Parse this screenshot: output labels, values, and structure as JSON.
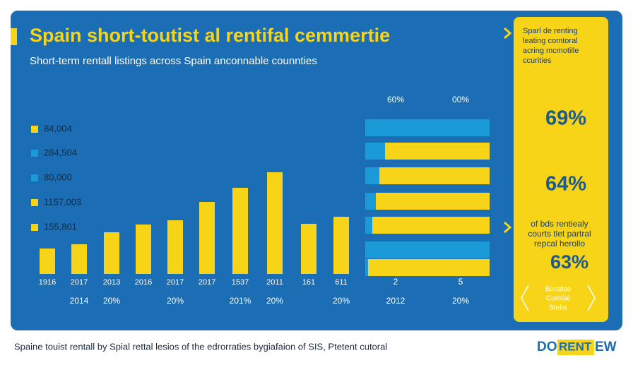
{
  "header": {
    "title": "Spain short-toutist al rentifal cemmertie",
    "subtitle": "Short-term rentall listings across Spain anconnable counnties"
  },
  "legend": [
    {
      "label": "84,004",
      "color": "#f7d417"
    },
    {
      "label": "284,504",
      "color": "#1a9ad6"
    },
    {
      "label": "80,000",
      "color": "#1a9ad6"
    },
    {
      "label": "1157,003",
      "color": "#f7d417"
    },
    {
      "label": "155,801",
      "color": "#f7d417"
    }
  ],
  "chart_data": [
    {
      "type": "bar",
      "categories": [
        "1916",
        "2017",
        "2013",
        "2016",
        "2017",
        "2017",
        "1537",
        "2011",
        "161",
        "611"
      ],
      "categories_2": [
        null,
        "2014",
        "20%",
        null,
        "20%",
        null,
        "201%",
        "20%",
        null,
        "20%"
      ],
      "values": [
        36,
        42,
        59,
        70,
        76,
        102,
        122,
        144,
        71,
        81
      ],
      "color": "#f7d417",
      "ylim": [
        0,
        160
      ]
    },
    {
      "type": "stacked_bar_h",
      "column_labels": [
        "60%",
        "00%"
      ],
      "bottom_labels": [
        "2",
        "5"
      ],
      "bottom_labels_2": [
        "2012",
        "20%"
      ],
      "series": [
        {
          "color": "#1a9ad6",
          "values": [
            176,
            28,
            20,
            15,
            10,
            176,
            4
          ]
        },
        {
          "color": "#f7d417",
          "values": [
            0,
            148,
            156,
            161,
            166,
            0,
            172
          ]
        }
      ],
      "xlim": [
        0,
        176
      ]
    }
  ],
  "side_panel": {
    "intro": [
      "Sparl de renting",
      "leating comtoral",
      "acring mcmotille",
      "ccurities"
    ],
    "stat_1": "69%",
    "stat_2": "64%",
    "note": [
      "of bds rentiealy",
      "courts tlet partral",
      "repcal herollo"
    ],
    "stat_3": "63%",
    "badge": [
      "Beratise",
      "Comtial",
      "Stebs"
    ]
  },
  "footer": "Spaine touist rentall by Spial rettal lesios of the edrorraties bygiafaion of SIS, Ptetent cutoral",
  "logo": {
    "left": "DO",
    "middle": "RENT",
    "right": "EW"
  }
}
